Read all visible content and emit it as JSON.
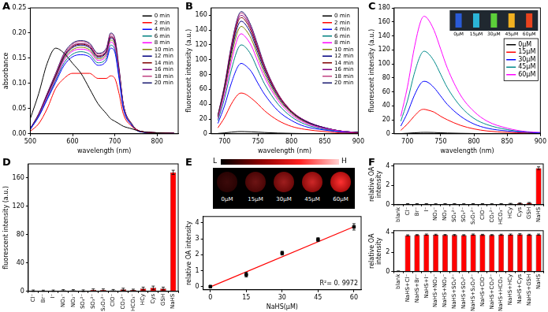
{
  "chart_data": [
    {
      "type": "line",
      "panel_label": "A",
      "x_label": "wavelength (nm)",
      "y_label": "absorbance",
      "x": [
        500,
        520,
        540,
        560,
        580,
        600,
        620,
        640,
        660,
        680,
        690,
        700,
        710,
        720,
        740,
        760,
        800,
        840
      ],
      "xlim": [
        500,
        850
      ],
      "xticks": [
        500,
        600,
        700,
        800
      ],
      "ylim": [
        0,
        0.25
      ],
      "yticks": [
        {
          "value": 0,
          "label": "0.00"
        },
        {
          "value": 0.05,
          "label": "0.05"
        },
        {
          "value": 0.1,
          "label": "0.10"
        },
        {
          "value": 0.15,
          "label": "0.15"
        },
        {
          "value": 0.2,
          "label": "0.20"
        },
        {
          "value": 0.25,
          "label": "0.25"
        }
      ],
      "grid": false,
      "legend": "upper right",
      "series": [
        {
          "name": "0 min",
          "color": "#000000",
          "values": [
            0.03,
            0.08,
            0.14,
            0.17,
            0.16,
            0.14,
            0.12,
            0.09,
            0.06,
            0.04,
            0.03,
            0.025,
            0.02,
            0.015,
            0.01,
            0.005,
            0.002,
            0.001
          ]
        },
        {
          "name": "2 min",
          "color": "#ff0000",
          "values": [
            0.005,
            0.02,
            0.05,
            0.09,
            0.11,
            0.12,
            0.12,
            0.12,
            0.11,
            0.11,
            0.115,
            0.11,
            0.08,
            0.04,
            0.015,
            0.005,
            0.002,
            0.001
          ]
        },
        {
          "name": "4 min",
          "color": "#0000ff",
          "values": [
            0.009,
            0.034,
            0.068,
            0.102,
            0.136,
            0.153,
            0.157,
            0.153,
            0.136,
            0.145,
            0.17,
            0.162,
            0.11,
            0.051,
            0.017,
            0.004,
            0.002,
            0.001
          ]
        },
        {
          "name": "6 min",
          "color": "#008080",
          "values": [
            0.009,
            0.035,
            0.07,
            0.106,
            0.141,
            0.158,
            0.163,
            0.158,
            0.141,
            0.15,
            0.176,
            0.167,
            0.114,
            0.053,
            0.018,
            0.004,
            0.002,
            0.001
          ]
        },
        {
          "name": "8 min",
          "color": "#ff00ff",
          "values": [
            0.009,
            0.036,
            0.073,
            0.109,
            0.146,
            0.164,
            0.168,
            0.164,
            0.146,
            0.155,
            0.182,
            0.173,
            0.118,
            0.055,
            0.018,
            0.005,
            0.002,
            0.001
          ]
        },
        {
          "name": "10 min",
          "color": "#808000",
          "values": [
            0.009,
            0.037,
            0.074,
            0.112,
            0.149,
            0.167,
            0.172,
            0.167,
            0.149,
            0.158,
            0.186,
            0.177,
            0.121,
            0.056,
            0.019,
            0.005,
            0.002,
            0.001
          ]
        },
        {
          "name": "12 min",
          "color": "#000080",
          "values": [
            0.01,
            0.038,
            0.076,
            0.114,
            0.152,
            0.171,
            0.176,
            0.171,
            0.152,
            0.162,
            0.19,
            0.181,
            0.124,
            0.057,
            0.019,
            0.005,
            0.002,
            0.001
          ]
        },
        {
          "name": "14 min",
          "color": "#800000",
          "values": [
            0.01,
            0.038,
            0.077,
            0.115,
            0.154,
            0.173,
            0.178,
            0.173,
            0.154,
            0.163,
            0.192,
            0.182,
            0.125,
            0.058,
            0.019,
            0.005,
            0.002,
            0.001
          ]
        },
        {
          "name": "16 min",
          "color": "#800080",
          "values": [
            0.01,
            0.039,
            0.078,
            0.116,
            0.155,
            0.175,
            0.179,
            0.175,
            0.155,
            0.165,
            0.194,
            0.184,
            0.126,
            0.058,
            0.019,
            0.005,
            0.002,
            0.001
          ]
        },
        {
          "name": "18 min",
          "color": "#c04080",
          "values": [
            0.01,
            0.04,
            0.079,
            0.119,
            0.158,
            0.178,
            0.183,
            0.178,
            0.158,
            0.168,
            0.198,
            0.188,
            0.129,
            0.059,
            0.02,
            0.005,
            0.002,
            0.001
          ]
        },
        {
          "name": "20 min",
          "color": "#191970",
          "values": [
            0.01,
            0.04,
            0.08,
            0.12,
            0.16,
            0.18,
            0.185,
            0.18,
            0.16,
            0.17,
            0.2,
            0.19,
            0.13,
            0.06,
            0.02,
            0.005,
            0.002,
            0.001
          ]
        }
      ]
    },
    {
      "type": "line",
      "panel_label": "B",
      "x_label": "wavelength (nm)",
      "y_label": "fluorescent intensity (a.u.)",
      "x": [
        690,
        700,
        710,
        720,
        725,
        730,
        740,
        750,
        760,
        780,
        800,
        820,
        850,
        880,
        900
      ],
      "xlim": [
        680,
        900
      ],
      "xticks": [
        700,
        750,
        800,
        850,
        900
      ],
      "ylim": [
        0,
        170
      ],
      "yticks": [
        0,
        20,
        40,
        60,
        80,
        100,
        120,
        140,
        160
      ],
      "grid": false,
      "legend": "upper right",
      "series": [
        {
          "name": "0 min",
          "color": "#000000",
          "values": [
            0.5,
            1.2,
            2.2,
            2.9,
            3,
            2.9,
            2.6,
            2.2,
            1.7,
            1,
            0.6,
            0.3,
            0.2,
            0.1,
            0
          ]
        },
        {
          "name": "2 min",
          "color": "#ff0000",
          "values": [
            8,
            22,
            40,
            53,
            55,
            54,
            48,
            40,
            31,
            18,
            10,
            6,
            3,
            1,
            1
          ]
        },
        {
          "name": "4 min",
          "color": "#0000ff",
          "values": [
            14,
            38,
            68,
            91,
            95,
            93,
            84,
            68,
            53,
            31,
            18,
            10,
            5,
            2,
            1
          ]
        },
        {
          "name": "6 min",
          "color": "#008080",
          "values": [
            18,
            48,
            86,
            115,
            120,
            118,
            106,
            86,
            67,
            40,
            23,
            13,
            6,
            2,
            1
          ]
        },
        {
          "name": "8 min",
          "color": "#ff00ff",
          "values": [
            20,
            54,
            97,
            130,
            135,
            132,
            119,
            97,
            76,
            45,
            26,
            15,
            7,
            3,
            1
          ]
        },
        {
          "name": "10 min",
          "color": "#808000",
          "values": [
            22,
            58,
            104,
            139,
            145,
            142,
            128,
            104,
            81,
            48,
            28,
            16,
            7,
            3,
            1
          ]
        },
        {
          "name": "12 min",
          "color": "#000080",
          "values": [
            23,
            61,
            109,
            146,
            152,
            149,
            134,
            109,
            85,
            50,
            29,
            17,
            8,
            3,
            2
          ]
        },
        {
          "name": "14 min",
          "color": "#800000",
          "values": [
            24,
            63,
            113,
            151,
            157,
            154,
            138,
            113,
            88,
            52,
            30,
            17,
            8,
            3,
            2
          ]
        },
        {
          "name": "16 min",
          "color": "#800080",
          "values": [
            24,
            64,
            115,
            154,
            160,
            157,
            141,
            115,
            90,
            53,
            30,
            18,
            8,
            3,
            2
          ]
        },
        {
          "name": "18 min",
          "color": "#c04080",
          "values": [
            24,
            65,
            117,
            156,
            163,
            160,
            143,
            117,
            91,
            54,
            31,
            18,
            8,
            3,
            2
          ]
        },
        {
          "name": "20 min",
          "color": "#191970",
          "values": [
            25,
            66,
            119,
            158,
            165,
            162,
            145,
            119,
            92,
            54,
            31,
            18,
            8,
            3,
            2
          ]
        }
      ]
    },
    {
      "type": "line",
      "panel_label": "C",
      "x_label": "wavelength (nm)",
      "y_label": "fluorescent intensity (a.u.)",
      "x": [
        690,
        700,
        710,
        720,
        725,
        730,
        740,
        750,
        760,
        780,
        800,
        820,
        850,
        880,
        900
      ],
      "xlim": [
        680,
        900
      ],
      "xticks": [
        700,
        750,
        800,
        850,
        900
      ],
      "ylim": [
        0,
        180
      ],
      "yticks": [
        0,
        20,
        40,
        60,
        80,
        100,
        120,
        140,
        160,
        180
      ],
      "grid": false,
      "legend": "upper right",
      "inset_labels": [
        "0μM",
        "15μM",
        "30μM",
        "45μM",
        "60μM"
      ],
      "series": [
        {
          "name": "0μM",
          "color": "#000000",
          "values": [
            0.3,
            0.8,
            1.4,
            1.9,
            2,
            2,
            1.8,
            1.4,
            1.1,
            0.7,
            0.4,
            0.2,
            0.1,
            0,
            0
          ]
        },
        {
          "name": "15μM",
          "color": "#ff0000",
          "values": [
            5,
            14,
            25,
            34,
            35,
            34,
            31,
            25,
            20,
            12,
            7,
            4,
            2,
            1,
            0
          ]
        },
        {
          "name": "30μM",
          "color": "#0000ff",
          "values": [
            11,
            30,
            54,
            72,
            75,
            74,
            66,
            54,
            42,
            25,
            14,
            8,
            4,
            2,
            1
          ]
        },
        {
          "name": "45μM",
          "color": "#008b8b",
          "values": [
            18,
            47,
            85,
            113,
            118,
            116,
            104,
            85,
            66,
            39,
            22,
            13,
            6,
            2,
            1
          ]
        },
        {
          "name": "60μM",
          "color": "#ff00ff",
          "values": [
            25,
            67,
            121,
            161,
            168,
            165,
            148,
            121,
            94,
            55,
            32,
            18,
            8,
            3,
            2
          ]
        }
      ]
    },
    {
      "type": "bar",
      "panel_label": "D",
      "y_label": "fluorescent intensity (a.u.)",
      "categories": [
        "Cl⁻",
        "Br⁻",
        "I⁻",
        "NO₃⁻",
        "NO₂⁻",
        "SO₄²⁻",
        "SO₃²⁻",
        "S₂O₃²⁻",
        "ClO⁻",
        "CO₃²⁻",
        "HCO₃⁻",
        "HCy",
        "Cys",
        "GSH",
        "NaHS"
      ],
      "values": [
        1,
        1,
        1,
        1.5,
        1.5,
        1,
        2,
        2,
        1.5,
        3,
        2,
        4,
        5,
        4,
        168
      ],
      "errors": [
        1,
        0.8,
        1,
        1,
        1,
        1.2,
        1.5,
        1.5,
        1.2,
        1.5,
        1.2,
        2,
        2.5,
        2,
        3
      ],
      "color": "#ff0000",
      "ylim": [
        0,
        180
      ],
      "yticks": [
        0,
        40,
        80,
        120,
        160
      ],
      "grid": false
    },
    {
      "type": "scatter",
      "panel_label": "E",
      "x_label": "NaHS(μM)",
      "y_label": "relative OA intensity",
      "annotation": "R²= 0. 9972",
      "scale_labels": [
        "L",
        "H"
      ],
      "image_labels": [
        "0μM",
        "15μM",
        "30μM",
        "45μM",
        "60μM"
      ],
      "xlim": [
        -3,
        63
      ],
      "xticks": [
        0,
        15,
        30,
        45,
        60
      ],
      "ylim": [
        -0.2,
        4.4
      ],
      "yticks": [
        0,
        1,
        2,
        3,
        4
      ],
      "grid": false,
      "series": [
        {
          "type": "scatter",
          "color": "#000000",
          "marker": "square",
          "x": [
            0,
            15,
            30,
            45,
            60
          ],
          "values": [
            0,
            0.75,
            2.1,
            2.95,
            3.75
          ],
          "errors": [
            0.05,
            0.15,
            0.12,
            0.12,
            0.2
          ]
        },
        {
          "type": "line",
          "color": "#ff0000",
          "line_style": "solid",
          "x": [
            0,
            60
          ],
          "values": [
            -0.02,
            3.76
          ]
        }
      ]
    },
    {
      "type": "bar",
      "panel_label": "F",
      "y_label": [
        "relative OA",
        "intensity"
      ],
      "categories": [
        "blank",
        "Cl⁻",
        "Br⁻",
        "I⁻",
        "NO₃⁻",
        "NO₂⁻",
        "SO₄²⁻",
        "SO₃²⁻",
        "S₂O₃²⁻",
        "ClO⁻",
        "CO₃²⁻",
        "HCO₃⁻",
        "HCy",
        "Cys",
        "GSH",
        "NaHS"
      ],
      "values": [
        0.02,
        0.08,
        0.08,
        0.08,
        0.07,
        0.08,
        0.08,
        0.07,
        0.08,
        0.08,
        0.07,
        0.08,
        0.1,
        0.15,
        0.18,
        3.75
      ],
      "errors": [
        0.01,
        0.03,
        0.03,
        0.03,
        0.03,
        0.03,
        0.03,
        0.03,
        0.03,
        0.03,
        0.03,
        0.03,
        0.04,
        0.05,
        0.05,
        0.15
      ],
      "color": "#ff0000",
      "ylim": [
        0,
        4.2
      ],
      "yticks": [
        0,
        2,
        4
      ],
      "grid": false
    },
    {
      "type": "bar",
      "y_label": [
        "relative OA",
        "intensity"
      ],
      "categories": [
        "blank",
        "NaHS+Cl⁻",
        "NaHS+Br⁻",
        "NaHS+I⁻",
        "NaHS+NO₃⁻",
        "NaHS+NO₂⁻",
        "NaHS+SO₄²⁻",
        "NaHS+SO₃²⁻",
        "NaHS+S₂O₃²⁻",
        "NaHS+ClO⁻",
        "NaHS+CO₃²⁻",
        "NaHS+HCO₃⁻",
        "NaHS+HCy",
        "NaHS+Cys",
        "NaHS+GSH",
        "NaHS"
      ],
      "values": [
        0.05,
        3.72,
        3.75,
        3.8,
        3.78,
        3.76,
        3.75,
        3.74,
        3.8,
        3.77,
        3.75,
        3.78,
        3.8,
        3.82,
        3.78,
        3.8
      ],
      "errors": [
        0.02,
        0.06,
        0.05,
        0.06,
        0.06,
        0.05,
        0.06,
        0.05,
        0.06,
        0.06,
        0.05,
        0.06,
        0.06,
        0.07,
        0.06,
        0.06
      ],
      "color": "#ff0000",
      "ylim": [
        0,
        4.2
      ],
      "yticks": [
        0,
        2,
        4
      ],
      "grid": false
    }
  ]
}
